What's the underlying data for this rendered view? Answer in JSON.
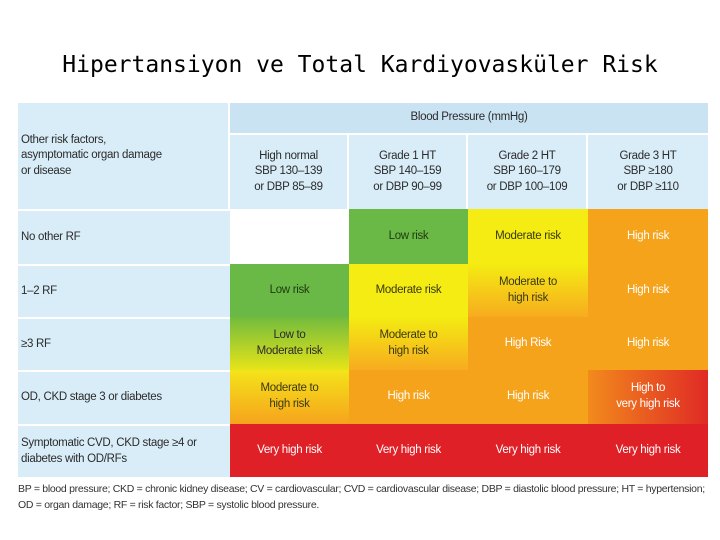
{
  "title": "Hipertansiyon ve Total Kardiyovasküler Risk",
  "table": {
    "corner_label": "Other risk factors,\nasymptomatic organ damage\nor disease",
    "bp_header": "Blood Pressure (mmHg)",
    "columns": [
      "High normal\nSBP 130–139\nor DBP 85–89",
      "Grade 1 HT\nSBP 140–159\nor DBP 90–99",
      "Grade 2 HT\nSBP 160–179\nor DBP 100–109",
      "Grade 3 HT\nSBP ≥180\nor DBP ≥110"
    ],
    "rows": [
      {
        "label": "No other RF",
        "cells": [
          "",
          "Low risk",
          "Moderate risk",
          "High risk"
        ]
      },
      {
        "label": "1–2 RF",
        "cells": [
          "Low risk",
          "Moderate risk",
          "Moderate to\nhigh risk",
          "High risk"
        ]
      },
      {
        "label": "≥3 RF",
        "cells": [
          "Low to\nModerate risk",
          "Moderate to\nhigh risk",
          "High Risk",
          "High risk"
        ]
      },
      {
        "label": "OD, CKD stage 3 or diabetes",
        "cells": [
          "Moderate to\nhigh risk",
          "High risk",
          "High risk",
          "High to\nvery high risk"
        ]
      },
      {
        "label": "Symptomatic CVD, CKD stage ≥4 or\ndiabetes with OD/RFs",
        "cells": [
          "Very high risk",
          "Very high risk",
          "Very high risk",
          "Very high risk"
        ]
      }
    ]
  },
  "colors": {
    "header_bg": "#d9edf8",
    "low": "#6ab845",
    "moderate": "#f4ec12",
    "high": "#f6a31c",
    "very_high": "#df2027"
  },
  "footnote": {
    "line1": "BP = blood pressure; CKD = chronic kidney disease; CV = cardiovascular; CVD = cardiovascular disease; DBP = diastolic blood pressure; HT = hypertension;",
    "line2": "OD = organ damage; RF = risk factor; SBP = systolic blood pressure."
  }
}
